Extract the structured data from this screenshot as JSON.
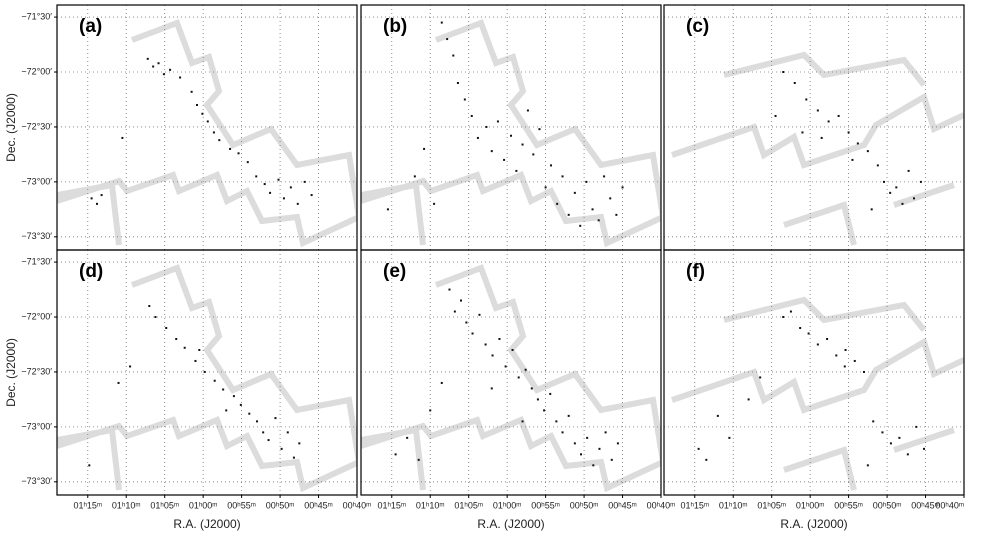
{
  "chart_data": [
    {
      "type": "scatter",
      "label": "(a)",
      "color": "#111111",
      "grid": true,
      "xlim": [
        79,
        40
      ],
      "ylim": [
        -73.62,
        -71.39
      ],
      "ylabel": "Dec. (J2000)",
      "yticks": [
        {
          "value": -71.5,
          "label": "−71°30′"
        },
        {
          "value": -72.0,
          "label": "−72°00′"
        },
        {
          "value": -72.5,
          "label": "−72°30′"
        },
        {
          "value": -73.0,
          "label": "−73°00′"
        },
        {
          "value": -73.5,
          "label": "−73°30′"
        }
      ],
      "x": [
        67.2,
        66.5,
        65.8,
        65.1,
        64.3,
        63.0,
        61.5,
        60.8,
        60.1,
        59.4,
        58.6,
        57.9,
        56.5,
        55.4,
        54.2,
        53.1,
        52.0,
        51.3,
        50.2,
        49.5,
        48.6,
        47.7,
        46.8,
        45.9,
        74.5,
        73.8,
        73.2,
        70.5
      ],
      "y": [
        -71.88,
        -71.95,
        -71.92,
        -72.02,
        -71.98,
        -72.05,
        -72.18,
        -72.3,
        -72.38,
        -72.45,
        -72.55,
        -72.62,
        -72.7,
        -72.74,
        -72.82,
        -72.95,
        -73.02,
        -73.1,
        -72.98,
        -73.15,
        -73.05,
        -73.2,
        -73.0,
        -73.12,
        -73.15,
        -73.2,
        -73.12,
        -72.6
      ]
    },
    {
      "type": "scatter",
      "label": "(b)",
      "color": "#111111",
      "grid": true,
      "xlim": [
        79,
        40
      ],
      "ylim": [
        -73.62,
        -71.39
      ],
      "x": [
        68.5,
        67.8,
        67.0,
        66.4,
        65.5,
        64.6,
        63.8,
        62.7,
        62.0,
        61.2,
        60.4,
        59.5,
        58.8,
        58.0,
        57.3,
        56.6,
        55.8,
        55.0,
        54.3,
        53.5,
        52.8,
        52.0,
        51.2,
        50.5,
        49.7,
        48.9,
        48.1,
        47.4,
        46.6,
        45.8,
        45.0,
        72.0,
        70.8,
        69.5,
        75.5
      ],
      "y": [
        -71.55,
        -71.7,
        -71.85,
        -72.1,
        -72.25,
        -72.4,
        -72.6,
        -72.5,
        -72.72,
        -72.45,
        -72.8,
        -72.58,
        -72.9,
        -72.66,
        -72.35,
        -72.75,
        -72.52,
        -73.05,
        -72.85,
        -73.2,
        -72.95,
        -73.3,
        -73.1,
        -73.4,
        -73.0,
        -73.25,
        -73.35,
        -72.95,
        -73.15,
        -73.3,
        -73.05,
        -72.95,
        -72.7,
        -73.2,
        -73.25
      ]
    },
    {
      "type": "scatter",
      "label": "(c)",
      "color": "#111111",
      "grid": true,
      "xlim": [
        79,
        40
      ],
      "ylim": [
        -73.62,
        -71.39
      ],
      "x": [
        63.5,
        62.0,
        60.5,
        59.0,
        57.6,
        56.3,
        55.0,
        53.8,
        52.5,
        51.2,
        50.4,
        49.6,
        48.8,
        48.0,
        47.2,
        46.5,
        45.6,
        52.0,
        54.5,
        58.5,
        61.0,
        64.5
      ],
      "y": [
        -72.0,
        -72.1,
        -72.25,
        -72.35,
        -72.45,
        -72.4,
        -72.55,
        -72.65,
        -72.72,
        -72.85,
        -73.0,
        -73.1,
        -73.05,
        -73.2,
        -72.9,
        -73.15,
        -73.0,
        -73.25,
        -72.8,
        -72.6,
        -72.55,
        -72.4
      ]
    },
    {
      "type": "scatter",
      "label": "(d)",
      "color": "#111111",
      "grid": true,
      "xlim": [
        79,
        40
      ],
      "ylim": [
        -73.62,
        -71.39
      ],
      "ylabel": "Dec. (J2000)",
      "xlabel": "R.A. (J2000)",
      "yticks": [
        {
          "value": -71.5,
          "label": "−71°30′"
        },
        {
          "value": -72.0,
          "label": "−72°00′"
        },
        {
          "value": -72.5,
          "label": "−72°30′"
        },
        {
          "value": -73.0,
          "label": "−73°00′"
        },
        {
          "value": -73.5,
          "label": "−73°30′"
        }
      ],
      "xticks": [
        {
          "value": 75,
          "label": "01ʰ15ᵐ"
        },
        {
          "value": 70,
          "label": "01ʰ10ᵐ"
        },
        {
          "value": 65,
          "label": "01ʰ05ᵐ"
        },
        {
          "value": 60,
          "label": "01ʰ00ᵐ"
        },
        {
          "value": 55,
          "label": "00ʰ55ᵐ"
        },
        {
          "value": 50,
          "label": "00ʰ50ᵐ"
        },
        {
          "value": 45,
          "label": "00ʰ45ᵐ"
        },
        {
          "value": 40,
          "label": "00ʰ40ᵐ"
        }
      ],
      "x": [
        67.0,
        66.2,
        64.8,
        63.5,
        62.4,
        61.0,
        59.8,
        58.5,
        57.4,
        56.0,
        55.1,
        54.0,
        53.0,
        52.2,
        51.5,
        50.6,
        49.8,
        49.0,
        48.2,
        47.5,
        74.8,
        71.0,
        69.5,
        60.5,
        57.0
      ],
      "y": [
        -71.9,
        -72.0,
        -72.1,
        -72.2,
        -72.28,
        -72.4,
        -72.5,
        -72.58,
        -72.66,
        -72.72,
        -72.8,
        -72.88,
        -72.95,
        -73.05,
        -73.12,
        -72.92,
        -73.2,
        -73.05,
        -73.28,
        -73.15,
        -73.35,
        -72.6,
        -72.45,
        -72.3,
        -72.85
      ]
    },
    {
      "type": "scatter",
      "label": "(e)",
      "color": "#111111",
      "grid": true,
      "xlim": [
        79,
        40
      ],
      "ylim": [
        -73.62,
        -71.39
      ],
      "xlabel": "R.A. (J2000)",
      "xticks": [
        {
          "value": 75,
          "label": "01ʰ15ᵐ"
        },
        {
          "value": 70,
          "label": "01ʰ10ᵐ"
        },
        {
          "value": 65,
          "label": "01ʰ05ᵐ"
        },
        {
          "value": 60,
          "label": "01ʰ00ᵐ"
        },
        {
          "value": 55,
          "label": "00ʰ55ᵐ"
        },
        {
          "value": 50,
          "label": "00ʰ50ᵐ"
        },
        {
          "value": 45,
          "label": "00ʰ45ᵐ"
        },
        {
          "value": 40,
          "label": "00ʰ40ᵐ"
        }
      ],
      "x": [
        67.5,
        66.8,
        66.0,
        65.3,
        64.5,
        63.6,
        62.8,
        61.9,
        61.0,
        60.2,
        59.3,
        58.5,
        57.6,
        56.8,
        56.0,
        55.2,
        54.4,
        53.6,
        52.8,
        52.0,
        51.2,
        50.4,
        49.6,
        48.8,
        48.0,
        47.2,
        46.4,
        45.6,
        74.5,
        73.0,
        71.5,
        70.0,
        68.5,
        62.0,
        58.0
      ],
      "y": [
        -71.75,
        -71.95,
        -71.85,
        -72.05,
        -72.15,
        -71.98,
        -72.25,
        -72.35,
        -72.2,
        -72.45,
        -72.3,
        -72.55,
        -72.48,
        -72.65,
        -72.75,
        -72.85,
        -72.7,
        -72.95,
        -73.05,
        -72.9,
        -73.15,
        -73.25,
        -73.1,
        -73.35,
        -73.2,
        -73.05,
        -73.3,
        -73.15,
        -73.25,
        -73.1,
        -73.3,
        -72.85,
        -72.6,
        -72.65,
        -72.95
      ]
    },
    {
      "type": "scatter",
      "label": "(f)",
      "color": "#111111",
      "grid": true,
      "xlim": [
        79,
        40
      ],
      "ylim": [
        -73.62,
        -71.39
      ],
      "xlabel": "R.A. (J2000)",
      "xticks": [
        {
          "value": 75,
          "label": "01ʰ15ᵐ"
        },
        {
          "value": 70,
          "label": "01ʰ10ᵐ"
        },
        {
          "value": 65,
          "label": "01ʰ05ᵐ"
        },
        {
          "value": 60,
          "label": "01ʰ00ᵐ"
        },
        {
          "value": 55,
          "label": "00ʰ55ᵐ"
        },
        {
          "value": 50,
          "label": "00ʰ50ᵐ"
        },
        {
          "value": 45,
          "label": "00ʰ45ᵐ"
        },
        {
          "value": 40,
          "label": "00ʰ40ᵐ"
        }
      ],
      "x": [
        63.5,
        62.5,
        61.3,
        60.2,
        59.0,
        57.8,
        56.6,
        55.4,
        54.2,
        53.0,
        51.8,
        50.6,
        49.5,
        48.4,
        47.3,
        46.2,
        45.2,
        74.5,
        73.5,
        72.0,
        70.5,
        68.0,
        66.5,
        52.5,
        55.5
      ],
      "y": [
        -72.0,
        -71.95,
        -72.1,
        -72.15,
        -72.25,
        -72.2,
        -72.35,
        -72.3,
        -72.4,
        -72.5,
        -72.95,
        -73.05,
        -73.15,
        -73.1,
        -73.25,
        -73.0,
        -73.2,
        -73.2,
        -73.3,
        -72.9,
        -73.1,
        -72.75,
        -72.55,
        -73.35,
        -72.45
      ]
    }
  ]
}
